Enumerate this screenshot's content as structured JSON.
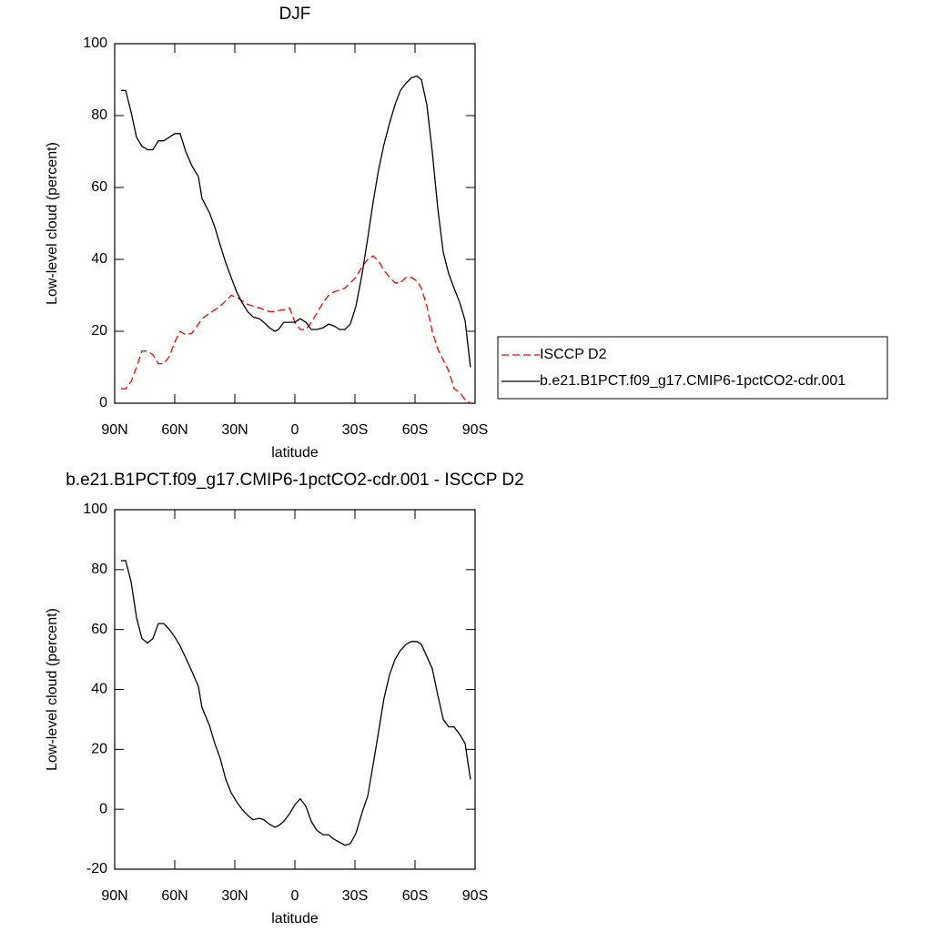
{
  "chart_data": [
    {
      "type": "line",
      "title": "DJF",
      "xlabel": "latitude",
      "ylabel": "Low-level cloud (percent)",
      "xlim": [
        90,
        -90
      ],
      "xticks": [
        {
          "value": 90,
          "label": "90N"
        },
        {
          "value": 60,
          "label": "60N"
        },
        {
          "value": 30,
          "label": "30N"
        },
        0,
        {
          "value": -30,
          "label": "30S"
        },
        {
          "value": -60,
          "label": "60S"
        },
        {
          "value": -90,
          "label": "90S"
        }
      ],
      "ylim": [
        0,
        100
      ],
      "yticks": [
        0,
        20,
        40,
        60,
        80,
        100
      ],
      "legend": "right",
      "x": [
        86.8,
        84.5,
        81.8,
        79.1,
        76.4,
        73.6,
        70.9,
        68.2,
        65.5,
        62.7,
        60.0,
        57.3,
        54.5,
        51.4,
        48.2,
        46.4,
        42.7,
        40.0,
        37.3,
        34.5,
        31.8,
        29.1,
        26.4,
        23.6,
        20.9,
        17.7,
        15.5,
        12.7,
        10.0,
        8.2,
        5.5,
        2.7,
        0.0,
        -2.7,
        -5.5,
        -8.2,
        -10.9,
        -14.1,
        -16.8,
        -19.5,
        -22.3,
        -25.0,
        -27.7,
        -30.5,
        -33.6,
        -36.4,
        -39.1,
        -41.8,
        -44.5,
        -47.3,
        -50.0,
        -52.7,
        -55.5,
        -58.2,
        -60.9,
        -63.2,
        -65.9,
        -68.6,
        -71.4,
        -74.1,
        -76.8,
        -79.5,
        -82.3,
        -85.0,
        -87.7
      ],
      "series": [
        {
          "name": "ISCCP D2",
          "color": "#ff0000",
          "dash": true,
          "values": [
            4,
            4,
            6,
            10,
            14.5,
            14.5,
            13.5,
            11,
            11,
            13,
            17,
            20,
            19,
            19.5,
            22,
            23.5,
            25,
            26,
            27,
            28.5,
            30,
            29.5,
            28.5,
            27.5,
            27,
            26.5,
            26,
            25.5,
            25.5,
            25.8,
            26,
            26.5,
            22.5,
            20.5,
            20.5,
            22.5,
            25,
            28,
            30,
            31,
            31.5,
            32,
            33.5,
            35,
            38,
            40,
            41,
            39.5,
            37,
            35,
            33.5,
            33.5,
            35,
            35,
            34,
            32,
            27,
            20,
            15,
            12,
            9,
            4,
            3,
            1,
            0
          ]
        },
        {
          "name": "b.e21.B1PCT.f09_g17.CMIP6-1pctCO2-cdr.001",
          "color": "#000000",
          "dash": false,
          "values": [
            87,
            87,
            81,
            74,
            71.5,
            70.5,
            70.5,
            73,
            73,
            74,
            75,
            75,
            70,
            66,
            63,
            57,
            53,
            49,
            44,
            39,
            35,
            31,
            28,
            25.5,
            24,
            23.5,
            22.5,
            21,
            20,
            20.5,
            22.5,
            22.5,
            22.5,
            23.5,
            22.5,
            20.5,
            20.5,
            21,
            22,
            21.5,
            20.5,
            20.5,
            22,
            27,
            36,
            46,
            56,
            65,
            72,
            78,
            83,
            87,
            89,
            90.5,
            91,
            90,
            83,
            70,
            54,
            42,
            36,
            32,
            28,
            23,
            10
          ]
        }
      ]
    },
    {
      "type": "line",
      "title": "b.e21.B1PCT.f09_g17.CMIP6-1pctCO2-cdr.001 - ISCCP D2",
      "xlabel": "latitude",
      "ylabel": "Low-level cloud (percent)",
      "xlim": [
        90,
        -90
      ],
      "xticks": [
        {
          "value": 90,
          "label": "90N"
        },
        {
          "value": 60,
          "label": "60N"
        },
        {
          "value": 30,
          "label": "30N"
        },
        0,
        {
          "value": -30,
          "label": "30S"
        },
        {
          "value": -60,
          "label": "60S"
        },
        {
          "value": -90,
          "label": "90S"
        }
      ],
      "ylim": [
        -20,
        100
      ],
      "yticks": [
        -20,
        0,
        20,
        40,
        60,
        80,
        100
      ],
      "x": [
        86.8,
        84.5,
        81.8,
        79.1,
        76.4,
        73.6,
        70.9,
        68.2,
        65.5,
        62.7,
        60.0,
        57.3,
        54.5,
        51.4,
        48.2,
        46.4,
        42.7,
        40.0,
        37.3,
        34.5,
        31.8,
        29.1,
        26.4,
        23.6,
        20.9,
        17.7,
        15.5,
        12.7,
        10.0,
        8.2,
        5.5,
        2.7,
        0.0,
        -2.7,
        -5.5,
        -8.2,
        -10.9,
        -14.1,
        -16.8,
        -19.5,
        -22.3,
        -25.0,
        -27.7,
        -30.5,
        -33.6,
        -36.4,
        -39.1,
        -41.8,
        -44.5,
        -47.3,
        -50.0,
        -52.7,
        -55.5,
        -58.2,
        -60.9,
        -63.2,
        -65.9,
        -68.6,
        -71.4,
        -74.1,
        -76.8,
        -79.5,
        -82.3,
        -85.0,
        -87.7
      ],
      "series": [
        {
          "color": "#000000",
          "dash": false,
          "values": [
            83,
            83,
            76,
            64,
            57,
            55.5,
            57,
            62,
            62,
            60,
            57.5,
            54.5,
            50.5,
            46,
            41,
            34,
            28,
            22,
            17,
            10,
            5.5,
            2.5,
            0,
            -2,
            -3.5,
            -3,
            -3.5,
            -5,
            -6,
            -5.5,
            -4,
            -1.5,
            1.5,
            3.5,
            1,
            -4,
            -7,
            -8.5,
            -8.5,
            -10,
            -11,
            -12,
            -11.5,
            -8,
            -1,
            4.5,
            15,
            26,
            37,
            45,
            50,
            53,
            55,
            56,
            56,
            55,
            51,
            47,
            38,
            30,
            27.5,
            27.5,
            25,
            22,
            10
          ]
        }
      ]
    }
  ]
}
